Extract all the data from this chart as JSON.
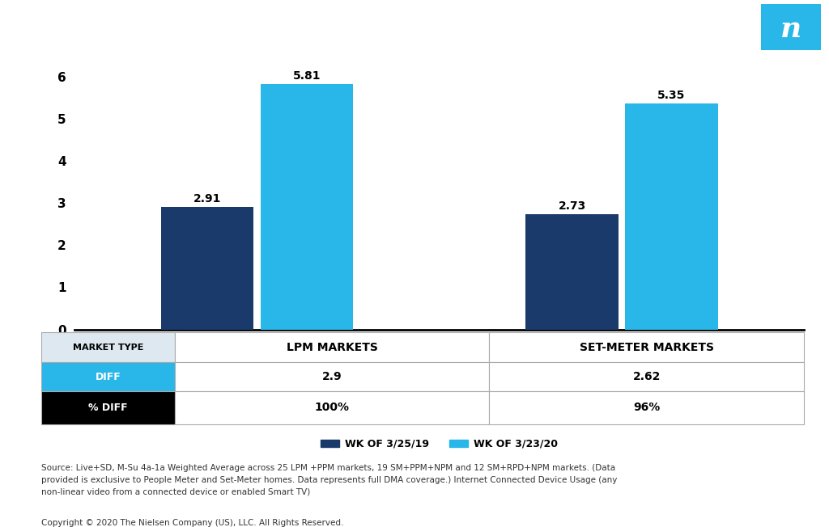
{
  "bar_groups": [
    "LPM MARKETS",
    "SET-METER MARKETS"
  ],
  "values_2019": [
    2.91,
    2.73
  ],
  "values_2020": [
    5.81,
    5.35
  ],
  "labels_2019": [
    "2.91",
    "2.73"
  ],
  "labels_2020": [
    "5.81",
    "5.35"
  ],
  "color_2019": "#1a3a6b",
  "color_2020": "#29b6e8",
  "diff_values": [
    "2.9",
    "2.62"
  ],
  "pct_diff_values": [
    "100%",
    "96%"
  ],
  "legend_label_2019": "WK OF 3/25/19",
  "legend_label_2020": "WK OF 3/23/20",
  "ylim": [
    0,
    6.5
  ],
  "yticks": [
    0,
    1,
    2,
    3,
    4,
    5,
    6
  ],
  "background_color": "#ffffff",
  "table_header_bg": "#dde8f0",
  "table_diff_bg": "#29b6e8",
  "table_pctdiff_bg": "#000000",
  "nielsen_logo_color": "#29b6e8",
  "bar_width": 0.28,
  "group_centers": [
    1.0,
    2.1
  ],
  "xlim": [
    0.45,
    2.65
  ],
  "source_text": "Source: Live+SD, M-Su 4a-1a Weighted Average across 25 LPM +PPM markets, 19 SM+PPM+NPM and 12 SM+RPD+NPM markets. (Data\nprovided is exclusive to People Meter and Set-Meter homes. Data represents full DMA coverage.) Internet Connected Device Usage (any\nnon-linear video from a connected device or enabled Smart TV)",
  "copyright_text": "Copyright © 2020 The Nielsen Company (US), LLC. All Rights Reserved."
}
